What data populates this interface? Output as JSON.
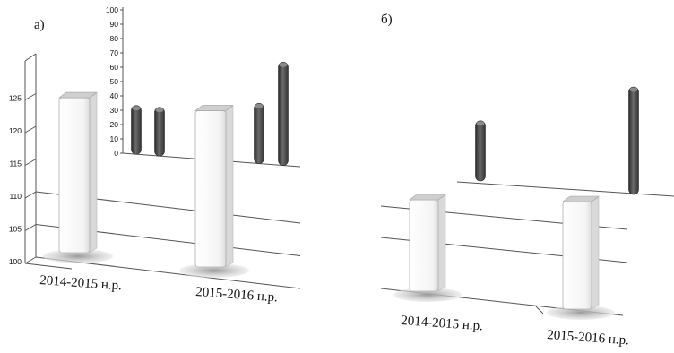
{
  "colors": {
    "white_bar": "#f7f7f7",
    "white_bar_side": "#d9d9d9",
    "dark_bar": "#555555",
    "dark_bar_side": "#2e2e2e",
    "grid": "#555555",
    "shadow": "#bdbdbd"
  },
  "chart_data": [
    {
      "panel_label": "а)",
      "type": "bar",
      "title": "",
      "categories": [
        "2014-2015 н.р.",
        "2015-2016 н.р."
      ],
      "series": [
        {
          "values": [
            125.2,
            124.6
          ]
        }
      ],
      "y_ticks": [
        "100",
        "105",
        "110",
        "115",
        "120",
        "125"
      ],
      "ylim": [
        100,
        127
      ],
      "grid": true,
      "inset": {
        "type": "bar",
        "series": [
          {
            "values": [
              34,
              42
            ]
          },
          {
            "values": [
              34,
              72
            ]
          }
        ],
        "y_ticks": [
          "0",
          "10",
          "20",
          "30",
          "40",
          "50",
          "60",
          "70",
          "80",
          "90",
          "100"
        ],
        "ylim": [
          0,
          100
        ]
      }
    },
    {
      "panel_label": "б)",
      "type": "bar",
      "title": "",
      "categories": [
        "2014-2015 н.р.",
        "2015-2016 н.р."
      ],
      "series": [
        {
          "values": [
            0.48,
            0.56
          ]
        },
        {
          "values": [
            0.28,
            0.5
          ]
        }
      ],
      "grid": true
    }
  ]
}
